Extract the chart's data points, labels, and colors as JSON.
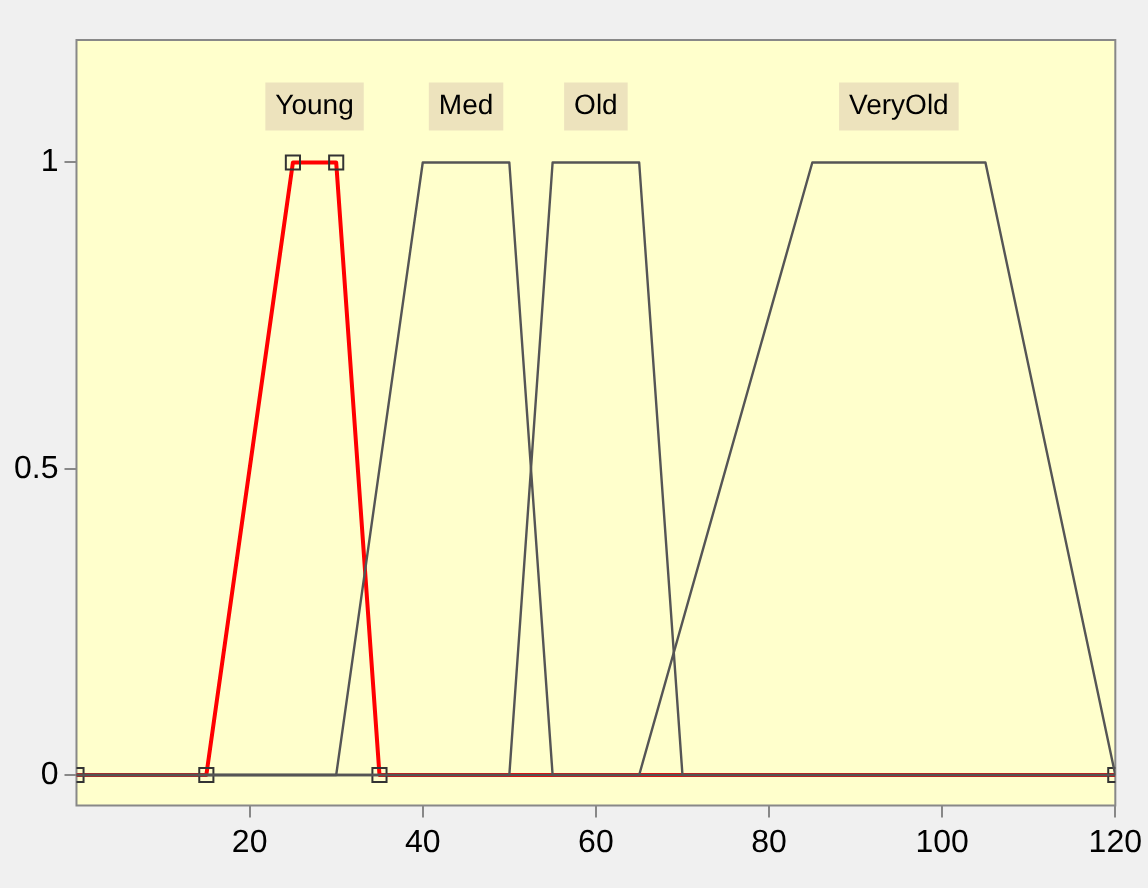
{
  "chart_data": {
    "type": "line",
    "xlim": [
      0,
      120
    ],
    "xticks": [
      20,
      40,
      60,
      80,
      100,
      120
    ],
    "ylim": [
      -0.05,
      1.2
    ],
    "yticks": [
      0,
      0.5,
      1
    ],
    "grid": false,
    "legend": false,
    "series": [
      {
        "name": "Young",
        "color": "#ff0000",
        "marker": "square",
        "x": [
          0,
          15,
          25,
          30,
          35,
          120
        ],
        "values": [
          0,
          0,
          1,
          1,
          0,
          0
        ]
      },
      {
        "name": "Med",
        "color": "#555555",
        "marker": "none",
        "x": [
          0,
          30,
          40,
          50,
          55,
          120
        ],
        "values": [
          0,
          0,
          1,
          1,
          0,
          0
        ]
      },
      {
        "name": "Old",
        "color": "#555555",
        "marker": "none",
        "x": [
          0,
          50,
          55,
          65,
          70,
          120
        ],
        "values": [
          0,
          0,
          1,
          1,
          0,
          0
        ]
      },
      {
        "name": "VeryOld",
        "color": "#555555",
        "marker": "none",
        "x": [
          0,
          65,
          85,
          105,
          120
        ],
        "values": [
          0,
          0,
          1,
          1,
          0
        ]
      }
    ]
  }
}
